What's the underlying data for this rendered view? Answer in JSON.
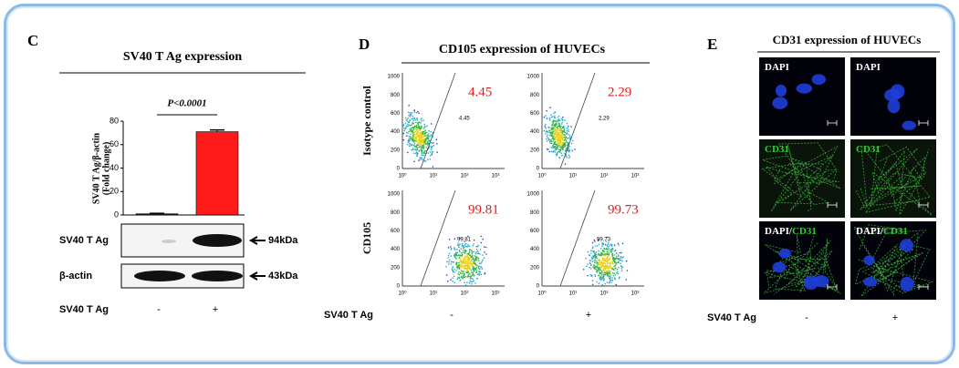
{
  "panel_c": {
    "letter": "C",
    "title": "SV40 T Ag expression",
    "chart": {
      "type": "bar",
      "y_label": [
        "SV40 T Ag/β-actin",
        "(Fold change)"
      ],
      "values": [
        1,
        71
      ],
      "errors": [
        0.4,
        1.5
      ],
      "colors": [
        "#222222",
        "#ff1a1a"
      ],
      "ylim": [
        0,
        80
      ],
      "yticks": [
        0,
        20,
        40,
        60,
        80
      ],
      "annotation": "P<0.0001"
    },
    "blot": [
      {
        "label": "SV40 T Ag",
        "size": "94kDa"
      },
      {
        "label": "β-actin",
        "size": "43kDa"
      }
    ],
    "conditions": {
      "label": "SV40 T Ag",
      "values": [
        "-",
        "+"
      ]
    }
  },
  "panel_d": {
    "letter": "D",
    "title": "CD105 expression of HUVECs",
    "rows": [
      "Isotype control",
      "CD105"
    ],
    "percentages": [
      [
        "4.45",
        "2.29"
      ],
      [
        "99.81",
        "99.73"
      ]
    ],
    "yticks": [
      "0",
      "200",
      "400",
      "600",
      "800",
      "1000"
    ],
    "xticks": [
      "10⁰",
      "10¹",
      "10²",
      "10³"
    ],
    "conditions": {
      "label": "SV40 T Ag",
      "values": [
        "-",
        "+"
      ]
    }
  },
  "panel_e": {
    "letter": "E",
    "title": "CD31 expression of HUVECs",
    "rows": [
      [
        {
          "text": "DAPI",
          "color": "#ffffff"
        }
      ],
      [
        {
          "text": "CD31",
          "color": "#33cc33"
        }
      ],
      [
        {
          "text": "DAPI/",
          "color": "#ffffff"
        },
        {
          "text": "CD31",
          "color": "#33cc33"
        }
      ]
    ],
    "conditions": {
      "label": "SV40 T Ag",
      "values": [
        "-",
        "+"
      ]
    }
  }
}
